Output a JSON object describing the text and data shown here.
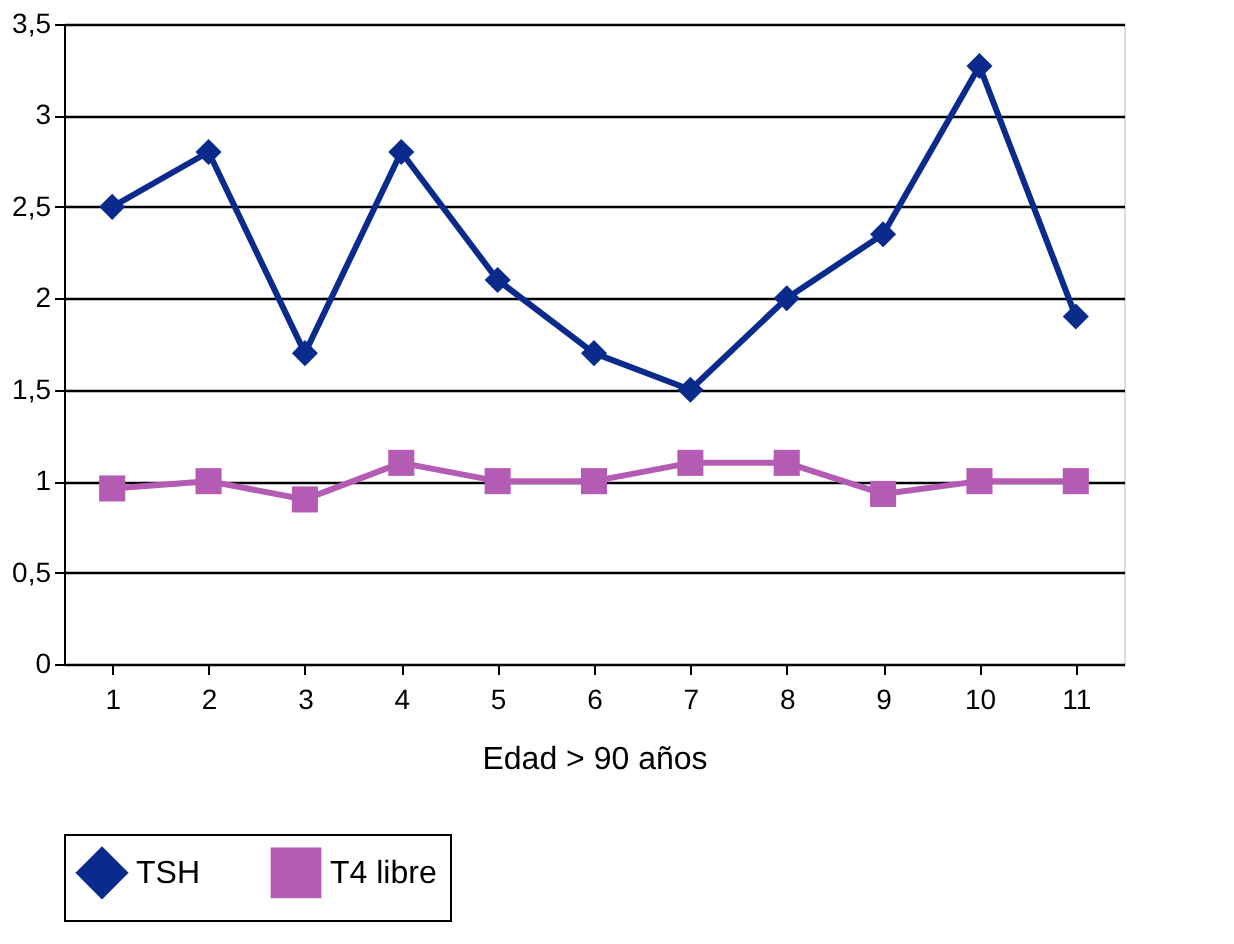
{
  "chart_data": {
    "type": "line",
    "xlabel": "Edad > 90 años",
    "categories": [
      "1",
      "2",
      "3",
      "4",
      "5",
      "6",
      "7",
      "8",
      "9",
      "10",
      "11"
    ],
    "series": [
      {
        "name": "TSH",
        "color": "#0a2a8c",
        "marker": "diamond",
        "values": [
          2.5,
          2.8,
          1.7,
          2.8,
          2.1,
          1.7,
          1.5,
          2.0,
          2.35,
          3.27,
          1.9
        ]
      },
      {
        "name": "T4 libre",
        "color": "#b45cb4",
        "marker": "square",
        "values": [
          0.96,
          1.0,
          0.9,
          1.1,
          1.0,
          1.0,
          1.1,
          1.1,
          0.93,
          1.0,
          1.0
        ]
      }
    ],
    "ylim": [
      0,
      3.5
    ],
    "yticks": [
      0,
      {
        "value": 0.5,
        "label": "0,5"
      },
      1,
      {
        "value": 1.5,
        "label": "1,5"
      },
      2,
      {
        "value": 2.5,
        "label": "2,5"
      },
      3,
      {
        "value": 3.5,
        "label": "3,5"
      }
    ],
    "grid": "y",
    "legend": "bottom",
    "line_style": "solid"
  }
}
